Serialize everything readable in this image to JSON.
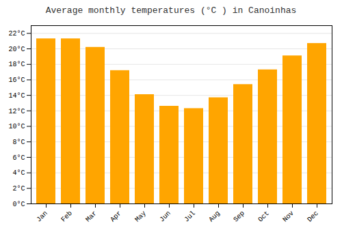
{
  "chart_data": {
    "type": "bar",
    "title": "Average monthly temperatures (°C ) in Canoinhas",
    "categories": [
      "Jan",
      "Feb",
      "Mar",
      "Apr",
      "May",
      "Jun",
      "Jul",
      "Aug",
      "Sep",
      "Oct",
      "Nov",
      "Dec"
    ],
    "values": [
      21.3,
      21.3,
      20.2,
      17.2,
      14.1,
      12.6,
      12.3,
      13.7,
      15.4,
      17.3,
      19.1,
      20.7
    ],
    "color": "#FFA500",
    "ylim": [
      0,
      23
    ],
    "yticks": [
      {
        "value": 0,
        "label": "0°C"
      },
      {
        "value": 2,
        "label": "2°C"
      },
      {
        "value": 4,
        "label": "4°C"
      },
      {
        "value": 6,
        "label": "6°C"
      },
      {
        "value": 8,
        "label": "8°C"
      },
      {
        "value": 10,
        "label": "10°C"
      },
      {
        "value": 12,
        "label": "12°C"
      },
      {
        "value": 14,
        "label": "14°C"
      },
      {
        "value": 16,
        "label": "16°C"
      },
      {
        "value": 18,
        "label": "18°C"
      },
      {
        "value": 20,
        "label": "20°C"
      },
      {
        "value": 22,
        "label": "22°C"
      }
    ],
    "grid": true
  }
}
